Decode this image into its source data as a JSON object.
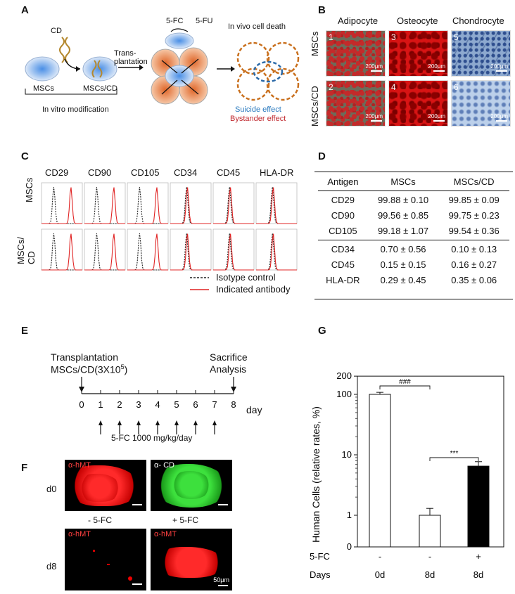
{
  "panels": {
    "A": "A",
    "B": "B",
    "C": "C",
    "D": "D",
    "E": "E",
    "F": "F",
    "G": "G"
  },
  "panelA": {
    "cd": "CD",
    "msc": "MSCs",
    "msc_cd": "MSCs/CD",
    "trans1": "Trans-",
    "trans2": "plantation",
    "fc": "5-FC",
    "fu": "5-FU",
    "vivo": "In vivo cell death",
    "modif": "In vitro modification",
    "suicide": "Suicide effect",
    "bystander": "Bystander effect",
    "colors": {
      "suicide": "#2b7bbf",
      "bystander": "#c0282e",
      "orange": "#e07a3a",
      "dashed": "#c9701e"
    }
  },
  "panelB": {
    "cols": [
      "Adipocyte",
      "Osteocyte",
      "Chondrocyte"
    ],
    "rows": [
      "MSCs",
      "MSCs/CD"
    ],
    "nums": [
      "1",
      "3",
      "5",
      "2",
      "4",
      "6"
    ],
    "scale": "200μm"
  },
  "panelC": {
    "markers": [
      "CD29",
      "CD90",
      "CD105",
      "CD34",
      "CD45",
      "HLA-DR"
    ],
    "rows": [
      "MSCs",
      "MSCs/ CD"
    ],
    "legend": [
      "Isotype control",
      "Indicated antibody"
    ],
    "colors": {
      "iso": "#222222",
      "ab": "#e02424"
    }
  },
  "panelD": {
    "headers": [
      "Antigen",
      "MSCs",
      "MSCs/CD"
    ],
    "rows": [
      [
        "CD29",
        "99.88 ± 0.10",
        "99.85 ± 0.09"
      ],
      [
        "CD90",
        "99.56 ± 0.85",
        "99.75 ± 0.23"
      ],
      [
        "CD105",
        "99.18 ± 1.07",
        "99.54 ± 0.36"
      ],
      [
        "CD34",
        "0.70 ± 0.56",
        "0.10 ± 0.13"
      ],
      [
        "CD45",
        "0.15 ± 0.15",
        "0.16 ± 0.27"
      ],
      [
        "HLA-DR",
        "0.29 ± 0.45",
        "0.35 ± 0.06"
      ]
    ]
  },
  "panelE": {
    "trans1": "Transplantation",
    "trans2": "MSCs/CD(3X10",
    "exp": "5",
    "close": ")",
    "sac1": "Sacrifice",
    "sac2": "Analysis",
    "ticks": [
      "0",
      "1",
      "2",
      "3",
      "4",
      "5",
      "6",
      "7",
      "8"
    ],
    "day": "day",
    "dose": "5-FC 1000 mg/kg/day"
  },
  "panelF": {
    "hmt": "α-hMT",
    "cd": "α- CD",
    "d0": "d0",
    "d8": "d8",
    "minus": "- 5-FC",
    "plus": "+ 5-FC",
    "scale": "50μm"
  },
  "chart_data": {
    "type": "bar",
    "ylabel": "Human Cells (relative rates, %)",
    "yscale": "log",
    "yticks": [
      "0",
      "1",
      "10",
      "100",
      "200"
    ],
    "categories": [
      "0d",
      "8d",
      "8d"
    ],
    "fc_row": [
      "-",
      "-",
      "+"
    ],
    "row_labels": [
      "5-FC",
      "Days"
    ],
    "values": [
      100,
      1.0,
      6.5
    ],
    "errors": [
      8,
      0.3,
      1.2
    ],
    "colors": [
      "#ffffff",
      "#ffffff",
      "#000000"
    ],
    "sig": [
      "###",
      "***"
    ]
  }
}
